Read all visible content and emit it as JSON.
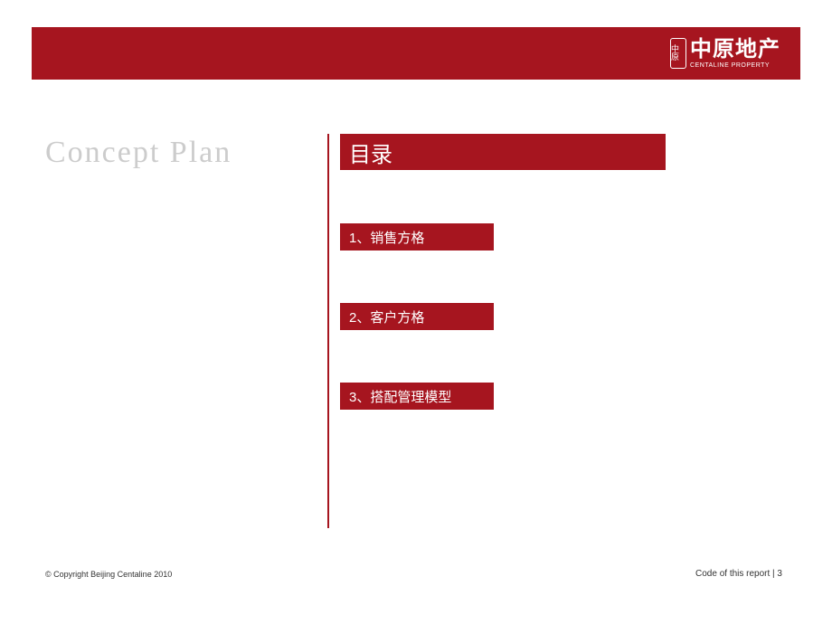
{
  "colors": {
    "brand_red": "#a6151f",
    "light_gray": "#cccccc",
    "text_dark": "#333333",
    "white": "#ffffff"
  },
  "header": {
    "logo_badge": "中原",
    "logo_cn": "中原地产",
    "logo_en": "CENTALINE PROPERTY"
  },
  "left_title": "Concept Plan",
  "toc": {
    "header": "目录",
    "items": [
      "1、销售方格",
      "2、客户方格",
      "3、搭配管理模型"
    ]
  },
  "footer": {
    "copyright": "© Copyright  Beijing Centaline 2010",
    "report_code": "Code of this report   |   3"
  }
}
